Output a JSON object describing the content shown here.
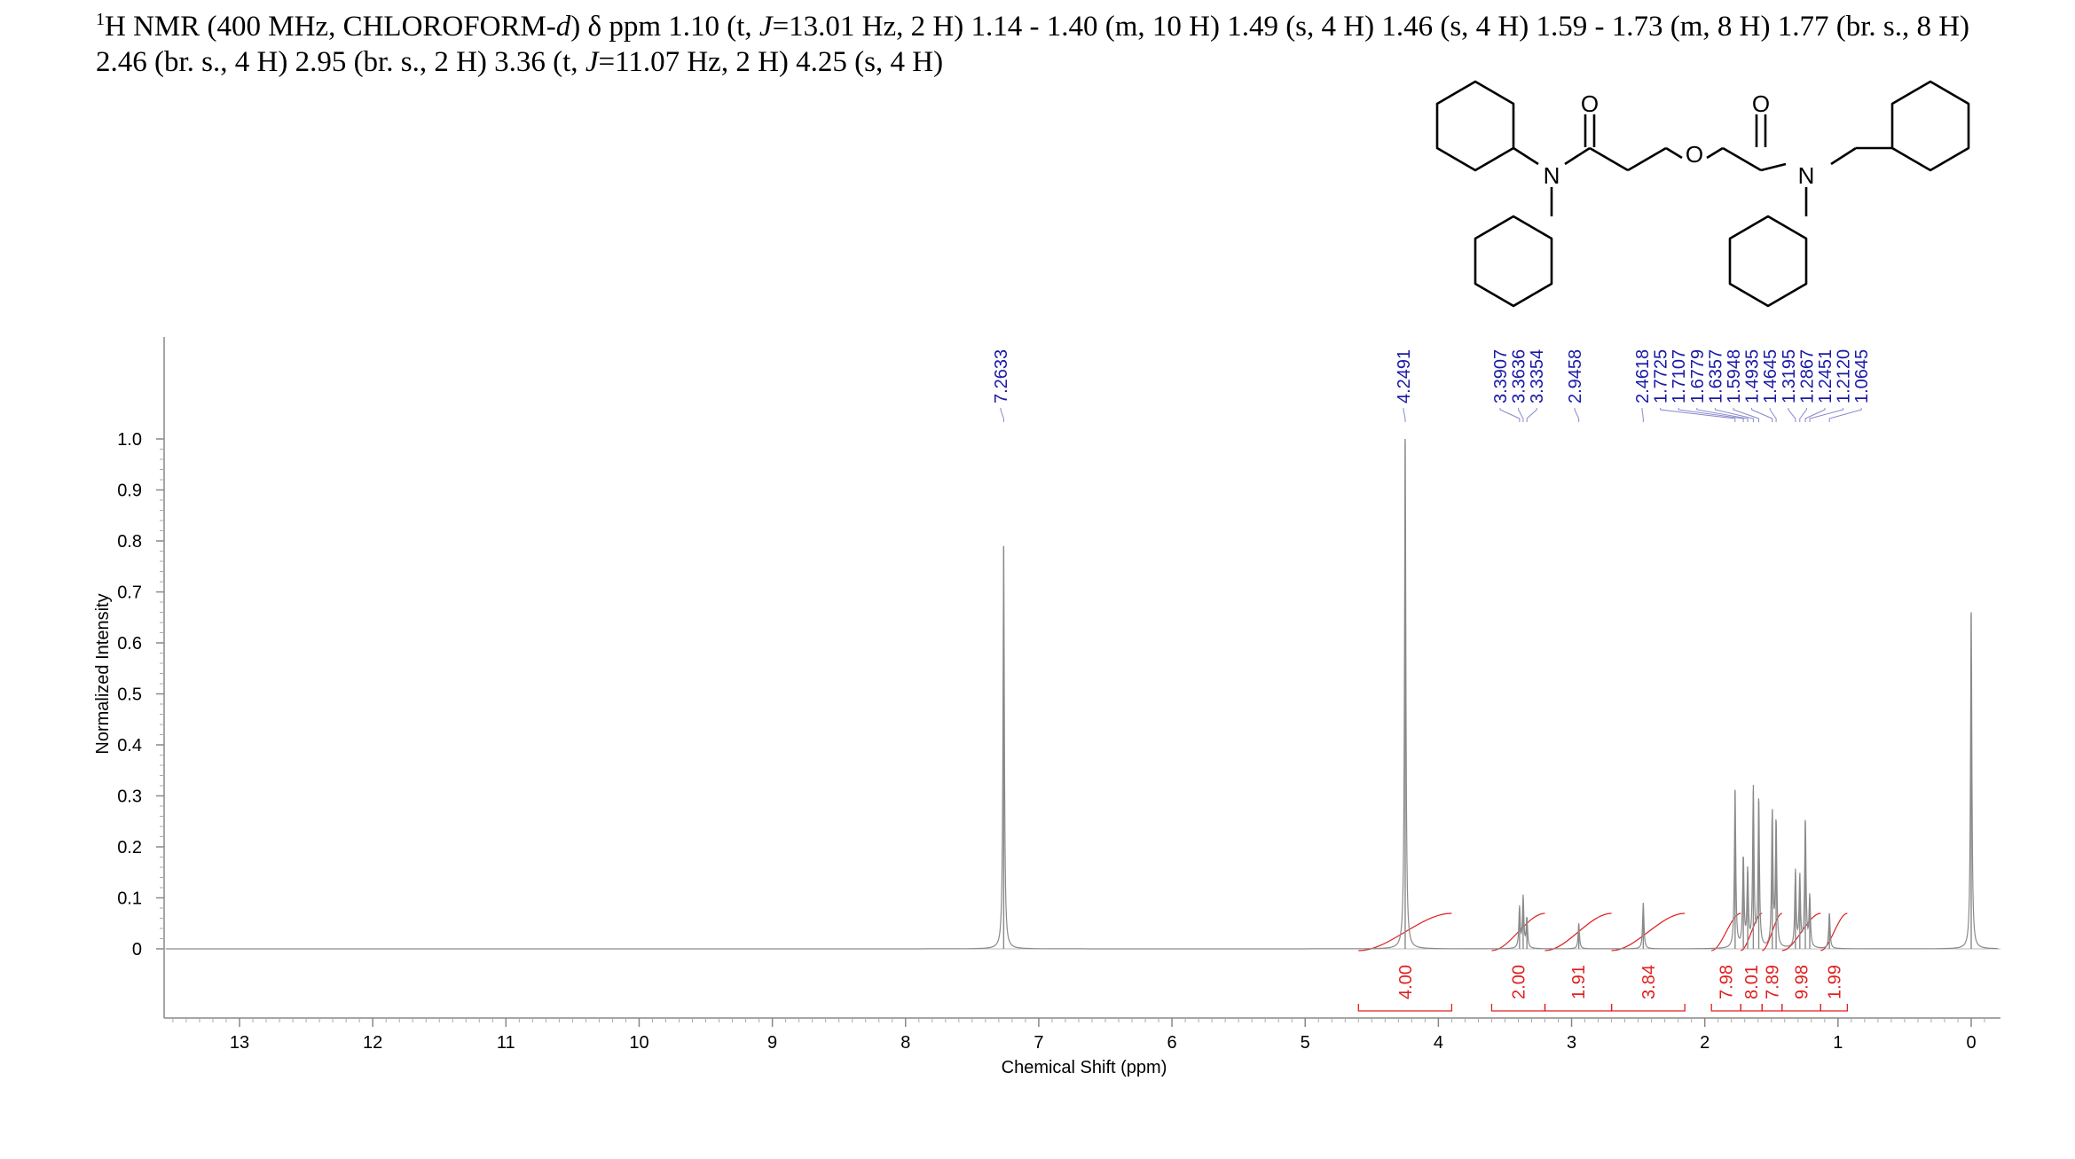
{
  "header": {
    "sup": "1",
    "part1": "H NMR (400 MHz, CHLOROFORM-",
    "italic_d": "d",
    "part2": ") δ ppm 1.10 (t, ",
    "j1": "J",
    "part3": "=13.01 Hz, 2 H) 1.14 - 1.40 (m, 10 H) 1.49 (s, 4 H) 1.46 (s, 4 H) 1.59 - 1.73 (m, 8 H) 1.77 (br. s., 8 H) 2.46 (br. s., 4 H) 2.95 (br. s., 2 H) 3.36 (t, ",
    "j2": "J",
    "part4": "=11.07 Hz, 2 H) 4.25 (s, 4 H)"
  },
  "structure": {
    "atoms": [
      "N",
      "O",
      "O",
      "O",
      "N"
    ]
  },
  "chart_data": {
    "type": "line",
    "xlabel": "Chemical Shift (ppm)",
    "ylabel": "Normalized Intensity",
    "xlim": [
      13.55,
      -0.2
    ],
    "ylim": [
      -0.1,
      1.2
    ],
    "x_ticks": [
      13,
      12,
      11,
      10,
      9,
      8,
      7,
      6,
      5,
      4,
      3,
      2,
      1,
      0
    ],
    "y_ticks": [
      0,
      0.1,
      0.2,
      0.3,
      0.4,
      0.5,
      0.6,
      0.7,
      0.8,
      0.9,
      1.0
    ],
    "y_tick_labels": [
      "0",
      "0.1",
      "0.2",
      "0.3",
      "0.4",
      "0.5",
      "0.6",
      "0.7",
      "0.8",
      "0.9",
      "1.0"
    ],
    "peaks": [
      {
        "ppm": 7.2633,
        "intensity": 0.79
      },
      {
        "ppm": 4.2491,
        "intensity": 1.0
      },
      {
        "ppm": 3.3907,
        "intensity": 0.08
      },
      {
        "ppm": 3.3636,
        "intensity": 0.1
      },
      {
        "ppm": 3.3354,
        "intensity": 0.06
      },
      {
        "ppm": 2.9458,
        "intensity": 0.05
      },
      {
        "ppm": 2.4618,
        "intensity": 0.09
      },
      {
        "ppm": 1.7725,
        "intensity": 0.31
      },
      {
        "ppm": 1.7107,
        "intensity": 0.18
      },
      {
        "ppm": 1.6779,
        "intensity": 0.15
      },
      {
        "ppm": 1.6357,
        "intensity": 0.31
      },
      {
        "ppm": 1.5948,
        "intensity": 0.29
      },
      {
        "ppm": 1.4935,
        "intensity": 0.27
      },
      {
        "ppm": 1.4645,
        "intensity": 0.25
      },
      {
        "ppm": 1.3195,
        "intensity": 0.15
      },
      {
        "ppm": 1.2867,
        "intensity": 0.14
      },
      {
        "ppm": 1.2451,
        "intensity": 0.25
      },
      {
        "ppm": 1.212,
        "intensity": 0.1
      },
      {
        "ppm": 1.0645,
        "intensity": 0.07
      },
      {
        "ppm": 0.0,
        "intensity": 0.66
      }
    ],
    "peak_labels": [
      "7.2633",
      "4.2491",
      "3.3907",
      "3.3636",
      "3.3354",
      "2.9458",
      "2.4618",
      "1.7725",
      "1.7107",
      "1.6779",
      "1.6357",
      "1.5948",
      "1.4935",
      "1.4645",
      "1.3195",
      "1.2867",
      "1.2451",
      "1.2120",
      "1.0645"
    ],
    "integrations": [
      {
        "from": 4.6,
        "to": 3.9,
        "label": "4.00"
      },
      {
        "from": 3.6,
        "to": 3.2,
        "label": "2.00"
      },
      {
        "from": 3.2,
        "to": 2.7,
        "label": "1.91"
      },
      {
        "from": 2.7,
        "to": 2.15,
        "label": "3.84"
      },
      {
        "from": 1.95,
        "to": 1.73,
        "label": "7.98"
      },
      {
        "from": 1.73,
        "to": 1.57,
        "label": "8.01"
      },
      {
        "from": 1.57,
        "to": 1.42,
        "label": "7.89"
      },
      {
        "from": 1.42,
        "to": 1.13,
        "label": "9.98"
      },
      {
        "from": 1.13,
        "to": 0.93,
        "label": "1.99"
      }
    ],
    "colors": {
      "spectrum": "#8a8a8a",
      "peak_label": "#1a1aa6",
      "integration": "#e02020",
      "axis": "#888888"
    }
  }
}
